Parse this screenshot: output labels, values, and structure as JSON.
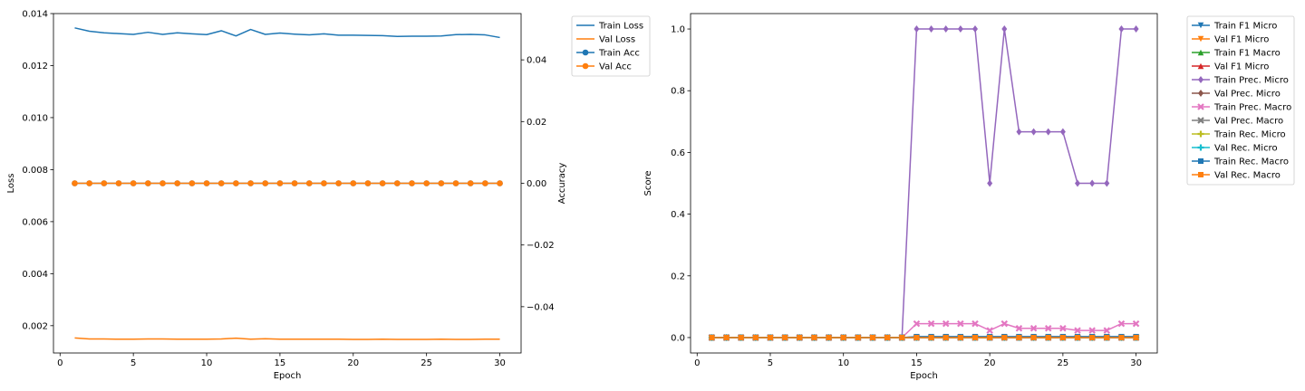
{
  "chart_data": [
    {
      "type": "line",
      "xlabel": "Epoch",
      "ylabel": "Loss",
      "y2label": "Accuracy",
      "xlim": [
        -0.45,
        31.45
      ],
      "ylim": [
        0.00095,
        0.014
      ],
      "y2lim": [
        -0.055,
        0.055
      ],
      "xticks": [
        0,
        5,
        10,
        15,
        20,
        25,
        30
      ],
      "yticks": [
        0.002,
        0.004,
        0.006,
        0.008,
        0.01,
        0.012,
        0.014
      ],
      "y2ticks": [
        -0.04,
        -0.02,
        0.0,
        0.02,
        0.04
      ],
      "legend_position": "outside-right",
      "x": [
        1,
        2,
        3,
        4,
        5,
        6,
        7,
        8,
        9,
        10,
        11,
        12,
        13,
        14,
        15,
        16,
        17,
        18,
        19,
        20,
        21,
        22,
        23,
        24,
        25,
        26,
        27,
        28,
        29,
        30
      ],
      "series": [
        {
          "name": "Train Loss",
          "axis": "left",
          "color": "#1f77b4",
          "marker": "none",
          "values": [
            0.01345,
            0.01332,
            0.01326,
            0.01323,
            0.0132,
            0.01328,
            0.0132,
            0.01326,
            0.01322,
            0.01319,
            0.01334,
            0.01314,
            0.01339,
            0.0132,
            0.01325,
            0.01321,
            0.01318,
            0.01322,
            0.01317,
            0.01317,
            0.01316,
            0.01315,
            0.01312,
            0.01313,
            0.01313,
            0.01314,
            0.01319,
            0.0132,
            0.01318,
            0.01308
          ]
        },
        {
          "name": "Val Loss",
          "axis": "left",
          "color": "#ff7f0e",
          "marker": "none",
          "values": [
            0.00153,
            0.00149,
            0.00149,
            0.00148,
            0.00148,
            0.00149,
            0.00149,
            0.00148,
            0.00148,
            0.00148,
            0.00149,
            0.00152,
            0.00148,
            0.0015,
            0.00148,
            0.00148,
            0.00148,
            0.00148,
            0.00148,
            0.00147,
            0.00147,
            0.00148,
            0.00147,
            0.00147,
            0.00147,
            0.00148,
            0.00147,
            0.00147,
            0.00148,
            0.00148
          ]
        },
        {
          "name": "Train Acc",
          "axis": "right",
          "color": "#1f77b4",
          "marker": "circle",
          "values": [
            0,
            0,
            0,
            0,
            0,
            0,
            0,
            0,
            0,
            0,
            0,
            0,
            0,
            0,
            0,
            0,
            0,
            0,
            0,
            0,
            0,
            0,
            0,
            0,
            0,
            0,
            0,
            0,
            0,
            0
          ]
        },
        {
          "name": "Val Acc",
          "axis": "right",
          "color": "#ff7f0e",
          "marker": "circle",
          "values": [
            0,
            0,
            0,
            0,
            0,
            0,
            0,
            0,
            0,
            0,
            0,
            0,
            0,
            0,
            0,
            0,
            0,
            0,
            0,
            0,
            0,
            0,
            0,
            0,
            0,
            0,
            0,
            0,
            0,
            0
          ]
        }
      ]
    },
    {
      "type": "line",
      "xlabel": "Epoch",
      "ylabel": "Score",
      "xlim": [
        -0.45,
        31.45
      ],
      "ylim": [
        -0.05,
        1.05
      ],
      "xticks": [
        0,
        5,
        10,
        15,
        20,
        25,
        30
      ],
      "yticks": [
        0.0,
        0.2,
        0.4,
        0.6,
        0.8,
        1.0
      ],
      "legend_position": "outside-right",
      "x": [
        1,
        2,
        3,
        4,
        5,
        6,
        7,
        8,
        9,
        10,
        11,
        12,
        13,
        14,
        15,
        16,
        17,
        18,
        19,
        20,
        21,
        22,
        23,
        24,
        25,
        26,
        27,
        28,
        29,
        30
      ],
      "series": [
        {
          "name": "Train F1 Micro",
          "color": "#1f77b4",
          "marker": "triangle-down",
          "values": [
            0,
            0,
            0,
            0,
            0,
            0,
            0,
            0,
            0,
            0,
            0,
            0,
            0,
            0,
            0.002,
            0.002,
            0.002,
            0.002,
            0.002,
            0.002,
            0.002,
            0.002,
            0.002,
            0.002,
            0.002,
            0.002,
            0.002,
            0.002,
            0.002,
            0.002
          ]
        },
        {
          "name": "Val F1 Micro",
          "color": "#ff7f0e",
          "marker": "triangle-down",
          "values": [
            0,
            0,
            0,
            0,
            0,
            0,
            0,
            0,
            0,
            0,
            0,
            0,
            0,
            0,
            0,
            0,
            0,
            0,
            0,
            0,
            0,
            0,
            0,
            0,
            0,
            0,
            0,
            0,
            0,
            0
          ]
        },
        {
          "name": "Train F1 Macro",
          "color": "#2ca02c",
          "marker": "triangle-up",
          "values": [
            0,
            0,
            0,
            0,
            0,
            0,
            0,
            0,
            0,
            0,
            0,
            0,
            0,
            0,
            0.001,
            0.001,
            0.001,
            0.001,
            0.001,
            0.001,
            0.001,
            0.001,
            0.001,
            0.001,
            0.001,
            0.001,
            0.001,
            0.001,
            0.001,
            0.001
          ]
        },
        {
          "name": "Val F1 Micro",
          "color": "#d62728",
          "marker": "triangle-up",
          "values": [
            0,
            0,
            0,
            0,
            0,
            0,
            0,
            0,
            0,
            0,
            0,
            0,
            0,
            0,
            0,
            0,
            0,
            0,
            0,
            0,
            0,
            0,
            0,
            0,
            0,
            0,
            0,
            0,
            0,
            0
          ]
        },
        {
          "name": "Train Prec. Micro",
          "color": "#9467bd",
          "marker": "diamond",
          "values": [
            0,
            0,
            0,
            0,
            0,
            0,
            0,
            0,
            0,
            0,
            0,
            0,
            0,
            0,
            1.0,
            1.0,
            1.0,
            1.0,
            1.0,
            0.5,
            1.0,
            0.6667,
            0.6667,
            0.6667,
            0.6667,
            0.5,
            0.5,
            0.5,
            1.0,
            1.0
          ]
        },
        {
          "name": "Val Prec. Micro",
          "color": "#8c564b",
          "marker": "diamond",
          "values": [
            0,
            0,
            0,
            0,
            0,
            0,
            0,
            0,
            0,
            0,
            0,
            0,
            0,
            0,
            0,
            0,
            0,
            0,
            0,
            0,
            0,
            0,
            0,
            0,
            0,
            0,
            0,
            0,
            0,
            0
          ]
        },
        {
          "name": "Train Prec. Macro",
          "color": "#e377c2",
          "marker": "x",
          "values": [
            0,
            0,
            0,
            0,
            0,
            0,
            0,
            0,
            0,
            0,
            0,
            0,
            0,
            0,
            0.045,
            0.045,
            0.045,
            0.045,
            0.045,
            0.023,
            0.045,
            0.03,
            0.03,
            0.03,
            0.03,
            0.023,
            0.023,
            0.023,
            0.045,
            0.045
          ]
        },
        {
          "name": "Val Prec. Macro",
          "color": "#7f7f7f",
          "marker": "x",
          "values": [
            0,
            0,
            0,
            0,
            0,
            0,
            0,
            0,
            0,
            0,
            0,
            0,
            0,
            0,
            0,
            0,
            0,
            0,
            0,
            0,
            0,
            0,
            0,
            0,
            0,
            0,
            0,
            0,
            0,
            0
          ]
        },
        {
          "name": "Train Rec. Micro",
          "color": "#bcbd22",
          "marker": "plus",
          "values": [
            0,
            0,
            0,
            0,
            0,
            0,
            0,
            0,
            0,
            0,
            0,
            0,
            0,
            0,
            0.001,
            0.001,
            0.001,
            0.001,
            0.001,
            0.001,
            0.001,
            0.001,
            0.001,
            0.001,
            0.001,
            0.001,
            0.001,
            0.001,
            0.001,
            0.001
          ]
        },
        {
          "name": "Val Rec. Micro",
          "color": "#17becf",
          "marker": "plus",
          "values": [
            0,
            0,
            0,
            0,
            0,
            0,
            0,
            0,
            0,
            0,
            0,
            0,
            0,
            0,
            0,
            0,
            0,
            0,
            0,
            0,
            0,
            0,
            0,
            0,
            0,
            0,
            0,
            0,
            0,
            0
          ]
        },
        {
          "name": "Train Rec. Macro",
          "color": "#1f77b4",
          "marker": "square",
          "values": [
            0,
            0,
            0,
            0,
            0,
            0,
            0,
            0,
            0,
            0,
            0,
            0,
            0,
            0,
            0.003,
            0.003,
            0.003,
            0.003,
            0.003,
            0.003,
            0.003,
            0.003,
            0.003,
            0.003,
            0.003,
            0.003,
            0.003,
            0.003,
            0.003,
            0.003
          ]
        },
        {
          "name": "Val Rec. Macro",
          "color": "#ff7f0e",
          "marker": "square",
          "values": [
            0,
            0,
            0,
            0,
            0,
            0,
            0,
            0,
            0,
            0,
            0,
            0,
            0,
            0,
            0,
            0,
            0,
            0,
            0,
            0,
            0,
            0,
            0,
            0,
            0,
            0,
            0,
            0,
            0,
            0
          ]
        }
      ]
    }
  ]
}
